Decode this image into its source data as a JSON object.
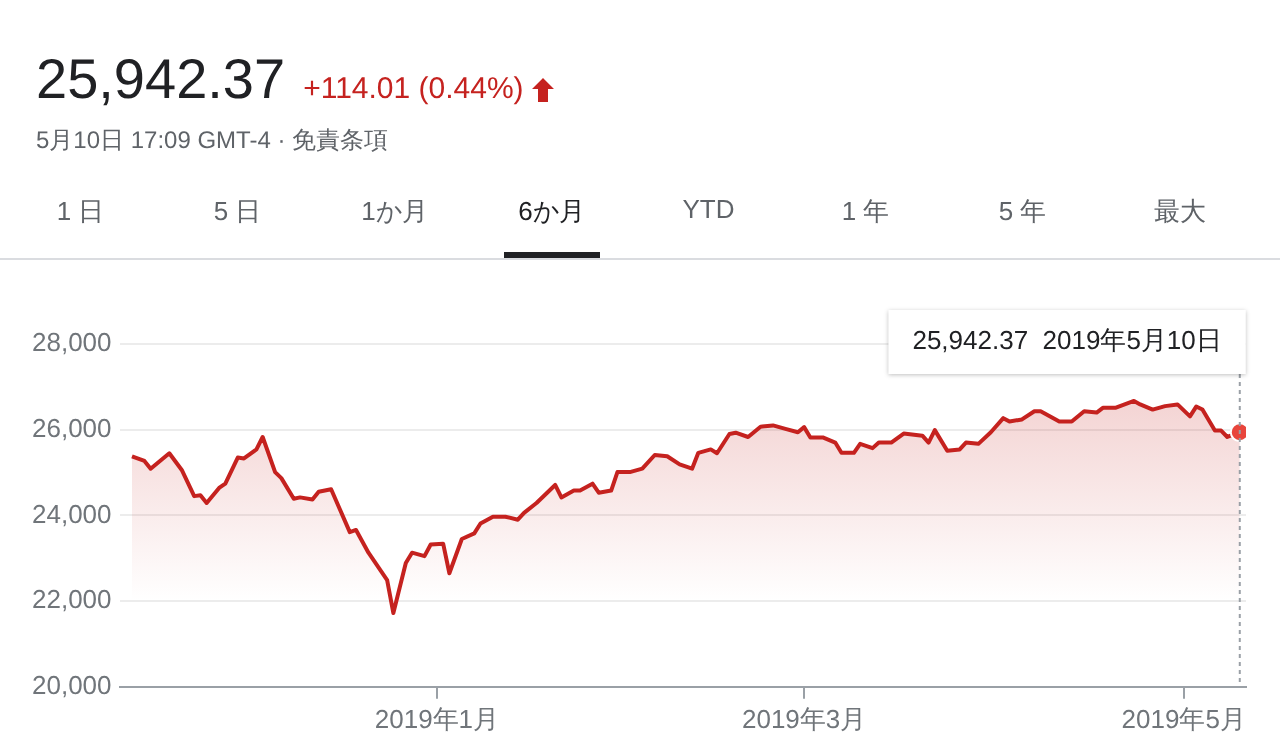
{
  "chart_data": {
    "type": "area",
    "title": "25,942.37",
    "subtitle": "+114.01 (0.44%)",
    "annotations": [
      "5月10日 17:09 GMT-4 · 免責条項",
      "1 日",
      "5 日",
      "1か月",
      "6か月",
      "YTD",
      "1 年",
      "5 年",
      "最大",
      "25,942.37  2019年5月10日"
    ],
    "x": [
      "2018-11-13",
      "2018-11-15",
      "2018-11-16",
      "2018-11-19",
      "2018-11-21",
      "2018-11-23",
      "2018-11-24",
      "2018-11-25",
      "2018-11-27",
      "2018-11-28",
      "2018-11-30",
      "2018-12-01",
      "2018-12-03",
      "2018-12-04",
      "2018-12-06",
      "2018-12-07",
      "2018-12-09",
      "2018-12-10",
      "2018-12-12",
      "2018-12-13",
      "2018-12-15",
      "2018-12-18",
      "2018-12-19",
      "2018-12-21",
      "2018-12-24",
      "2018-12-25",
      "2018-12-27",
      "2018-12-28",
      "2018-12-30",
      "2018-12-31",
      "2019-01-02",
      "2019-01-03",
      "2019-01-05",
      "2019-01-07",
      "2019-01-08",
      "2019-01-10",
      "2019-01-12",
      "2019-01-14",
      "2019-01-15",
      "2019-01-17",
      "2019-01-20",
      "2019-01-21",
      "2019-01-23",
      "2019-01-24",
      "2019-01-26",
      "2019-01-27",
      "2019-01-29",
      "2019-01-30",
      "2019-02-01",
      "2019-02-03",
      "2019-02-05",
      "2019-02-07",
      "2019-02-09",
      "2019-02-11",
      "2019-02-12",
      "2019-02-14",
      "2019-02-15",
      "2019-02-17",
      "2019-02-18",
      "2019-02-20",
      "2019-02-22",
      "2019-02-24",
      "2019-02-26",
      "2019-02-28",
      "2019-03-01",
      "2019-03-02",
      "2019-03-04",
      "2019-03-06",
      "2019-03-07",
      "2019-03-09",
      "2019-03-10",
      "2019-03-12",
      "2019-03-13",
      "2019-03-15",
      "2019-03-17",
      "2019-03-20",
      "2019-03-21",
      "2019-03-22",
      "2019-03-24",
      "2019-03-26",
      "2019-03-27",
      "2019-03-29",
      "2019-03-31",
      "2019-04-02",
      "2019-04-03",
      "2019-04-05",
      "2019-04-07",
      "2019-04-08",
      "2019-04-11",
      "2019-04-13",
      "2019-04-15",
      "2019-04-17",
      "2019-04-18",
      "2019-04-20",
      "2019-04-23",
      "2019-04-24",
      "2019-04-26",
      "2019-04-28",
      "2019-04-30",
      "2019-05-02",
      "2019-05-03",
      "2019-05-04",
      "2019-05-06",
      "2019-05-07",
      "2019-05-08",
      "2019-05-10"
    ],
    "series": [
      {
        "color": "#c5221f",
        "values": [
          25380,
          25270,
          25090,
          25450,
          25060,
          24450,
          24470,
          24290,
          24640,
          24740,
          25350,
          25330,
          25540,
          25830,
          25010,
          24870,
          24390,
          24420,
          24370,
          24550,
          24610,
          23610,
          23660,
          23130,
          22490,
          21720,
          22890,
          23130,
          23050,
          23320,
          23340,
          22650,
          23450,
          23580,
          23810,
          23970,
          23970,
          23900,
          24060,
          24290,
          24710,
          24420,
          24580,
          24580,
          24740,
          24530,
          24580,
          25010,
          25010,
          25090,
          25410,
          25380,
          25190,
          25090,
          25460,
          25540,
          25450,
          25900,
          25930,
          25830,
          26070,
          26100,
          26020,
          25940,
          26060,
          25820,
          25820,
          25700,
          25460,
          25460,
          25670,
          25570,
          25700,
          25700,
          25910,
          25860,
          25700,
          25990,
          25510,
          25540,
          25700,
          25670,
          25940,
          26270,
          26190,
          26240,
          26430,
          26430,
          26190,
          26190,
          26430,
          26400,
          26510,
          26510,
          26670,
          26590,
          26470,
          26550,
          26590,
          26310,
          26540,
          26470,
          25980,
          25980,
          25830,
          25942.37
        ]
      }
    ],
    "xlim": [
      "2018-11-11",
      "2019-05-11"
    ],
    "xticks": [
      {
        "value": "2019-01-01",
        "label": "2019年1月"
      },
      {
        "value": "2019-03-01",
        "label": "2019年3月"
      },
      {
        "value": "2019-05-01",
        "label": "2019年5月"
      }
    ],
    "ylim": [
      20000,
      28000
    ],
    "yticks": [
      {
        "value": 20000,
        "label": "20,000"
      },
      {
        "value": 22000,
        "label": "22,000"
      },
      {
        "value": 24000,
        "label": "24,000"
      },
      {
        "value": 26000,
        "label": "26,000"
      },
      {
        "value": 28000,
        "label": "28,000"
      }
    ],
    "ref_lines": [
      {
        "axis": "x",
        "value": "2019-05-10",
        "line_style": "dotted",
        "color": "#9aa0a6"
      }
    ],
    "grid": "y",
    "legend": false,
    "marker": "none",
    "line_style": "solid"
  }
}
